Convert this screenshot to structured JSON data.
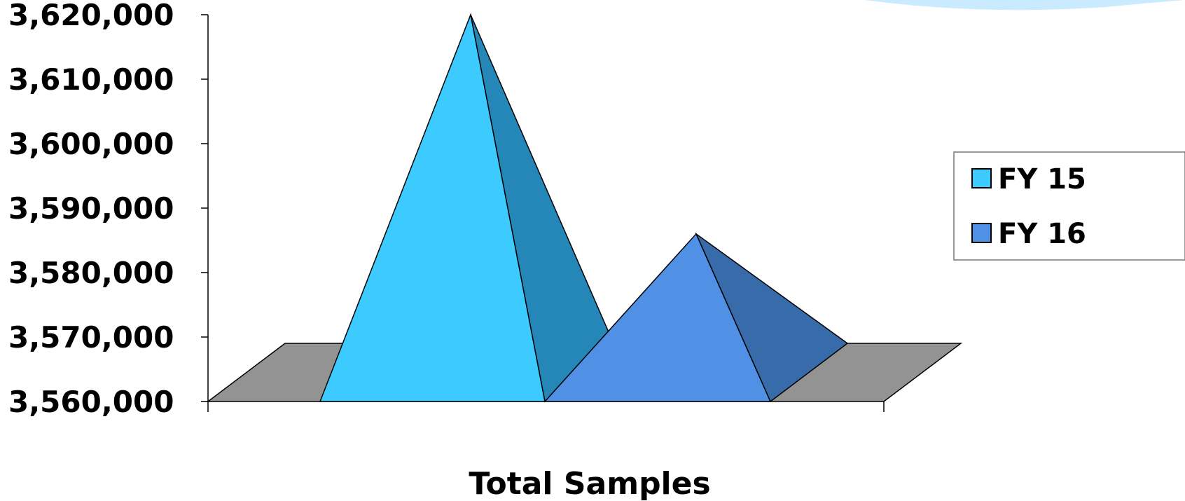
{
  "chart_data": {
    "type": "bar",
    "shape": "3d-pyramid",
    "categories": [
      "Total Samples"
    ],
    "series": [
      {
        "name": "FY 15",
        "values": [
          3620000
        ],
        "color": "#3DCBFF",
        "shade": "#2586B8"
      },
      {
        "name": "FY 16",
        "values": [
          3586000
        ],
        "color": "#5090E5",
        "shade": "#386BAA"
      }
    ],
    "ylim": [
      3560000,
      3620000
    ],
    "yticks": [
      "3,560,000",
      "3,570,000",
      "3,580,000",
      "3,590,000",
      "3,600,000",
      "3,610,000",
      "3,620,000"
    ],
    "ytick_values": [
      3560000,
      3570000,
      3580000,
      3590000,
      3600000,
      3610000,
      3620000
    ],
    "legend": {
      "position": "right",
      "entries": [
        "FY 15",
        "FY 16"
      ]
    },
    "floor_color": "#939393",
    "grid": false
  }
}
